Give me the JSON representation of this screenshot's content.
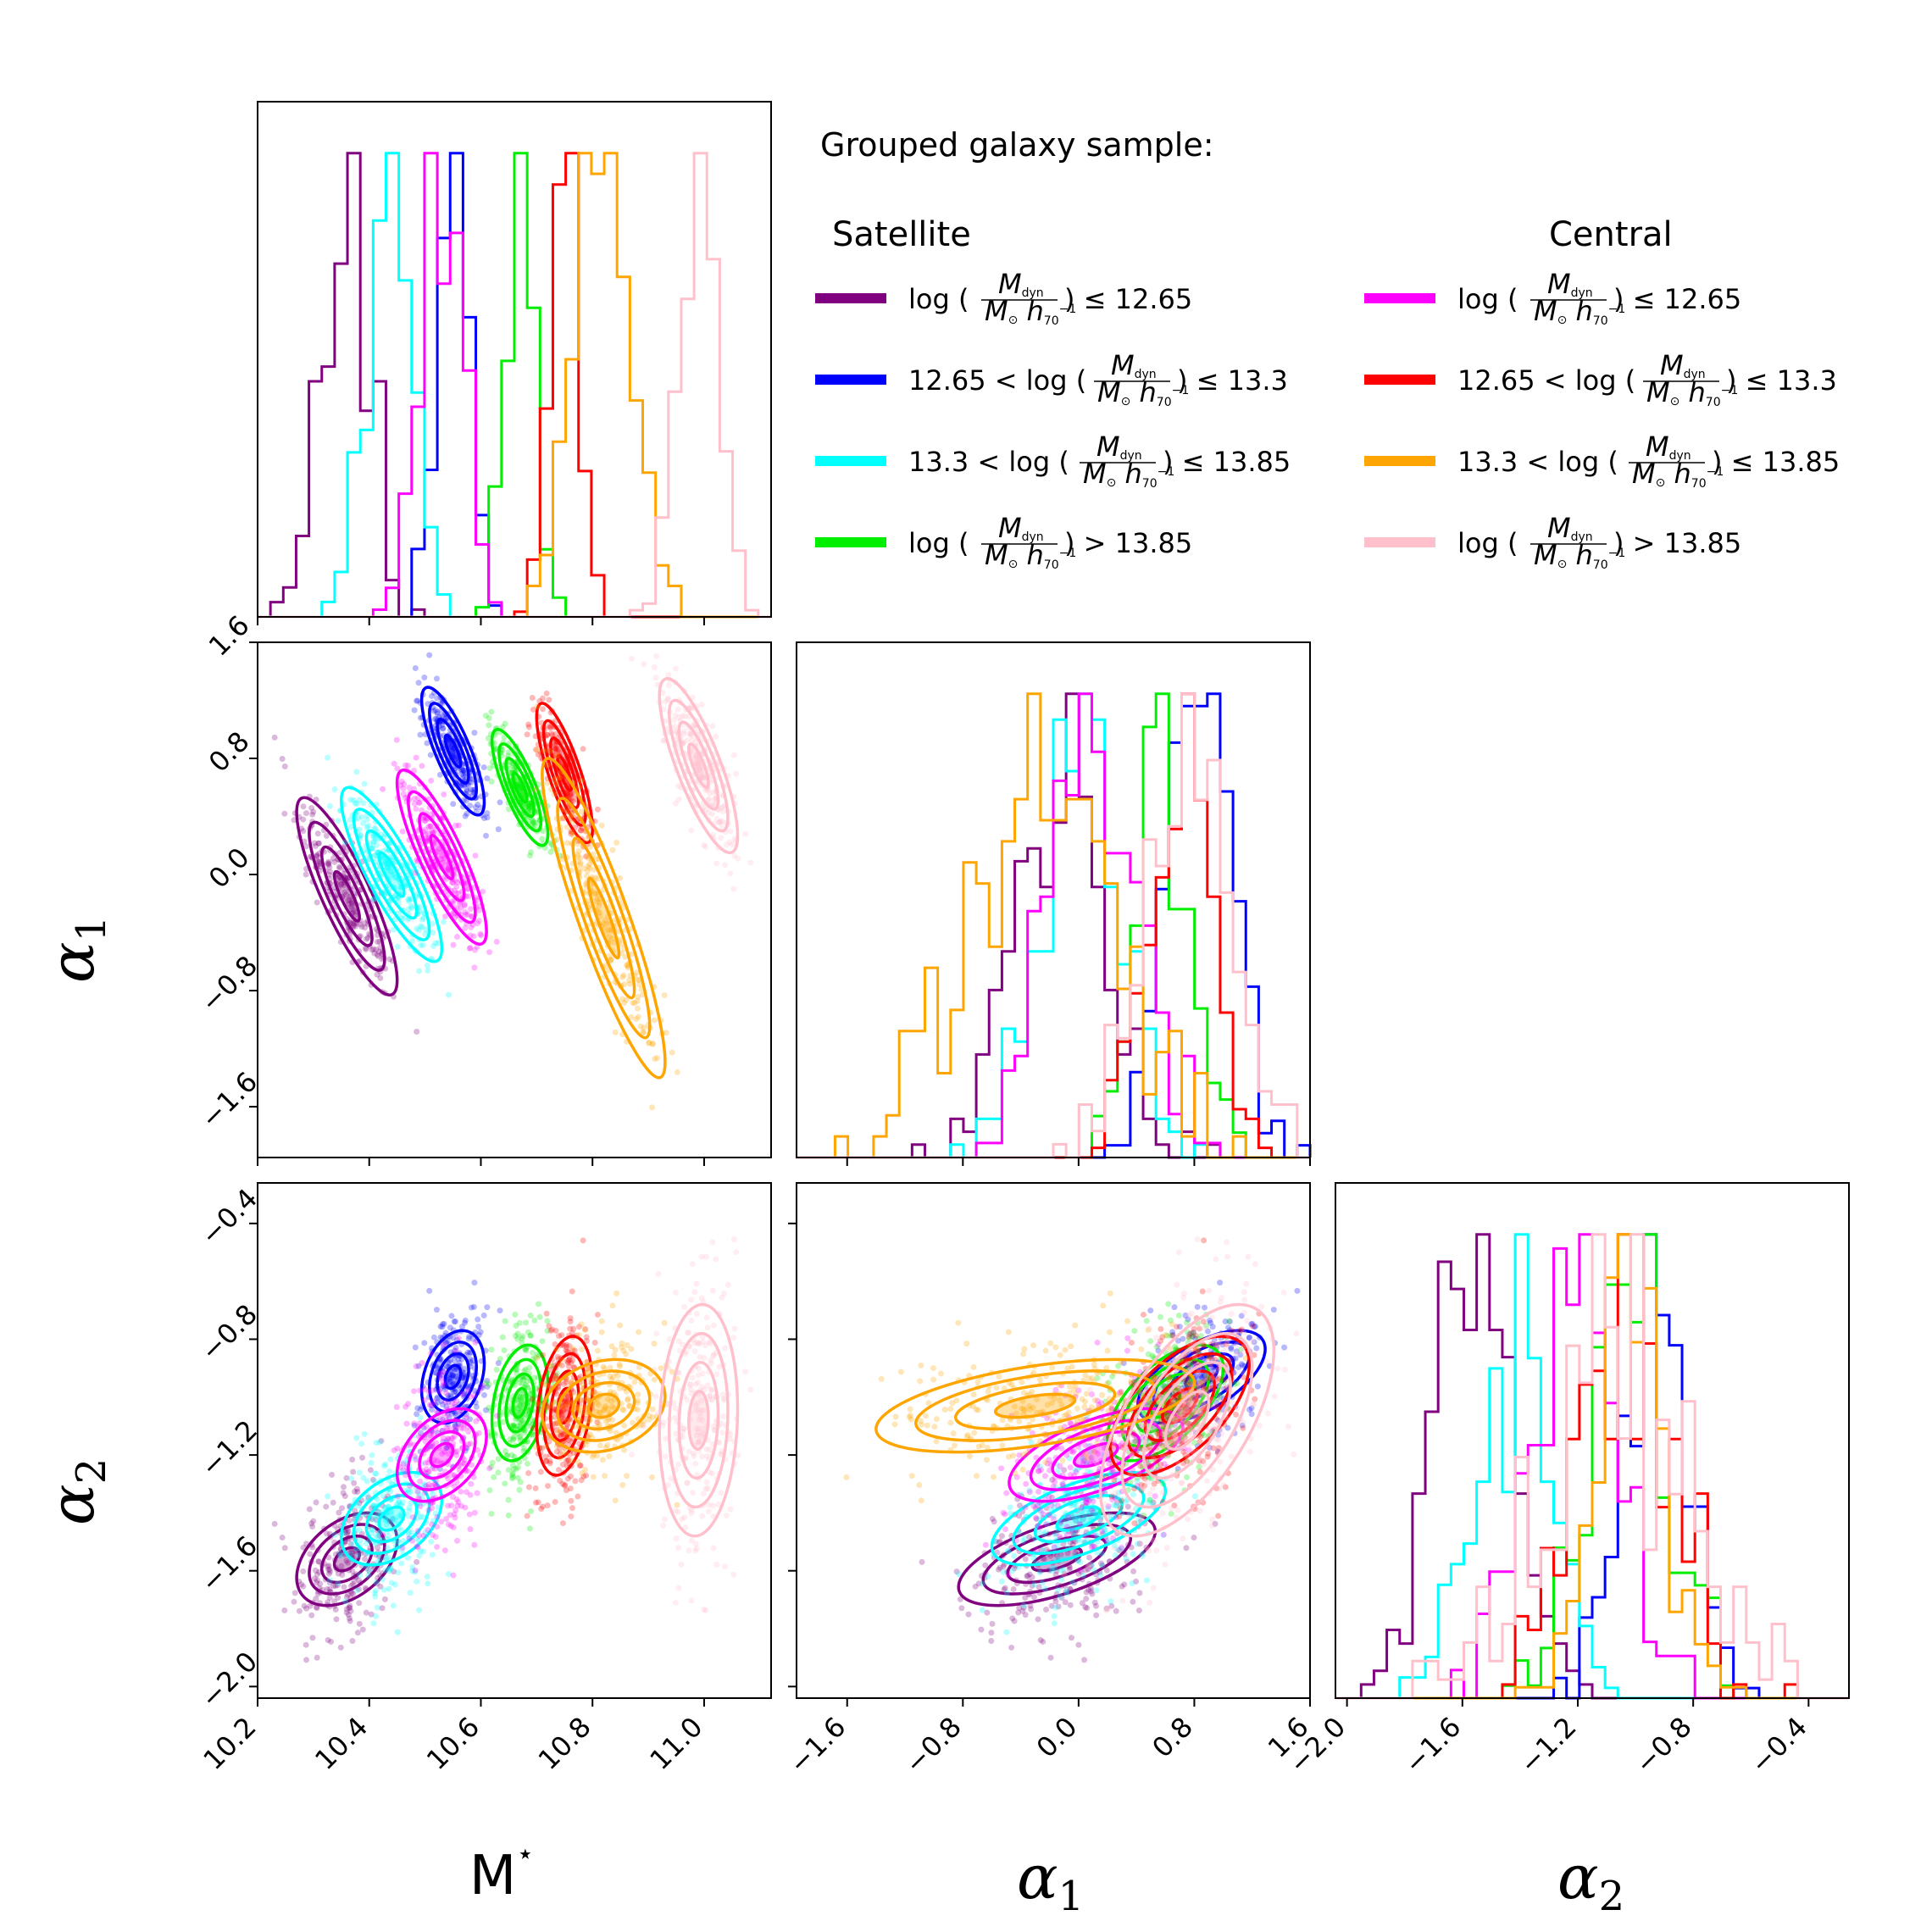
{
  "chart_data": {
    "type": "corner",
    "parameters": [
      "M*",
      "α1",
      "α2"
    ],
    "axis_labels": {
      "mstar": "M",
      "mstar_sup": "⋆",
      "alpha1": "α",
      "alpha1_sub": "1",
      "alpha2": "α",
      "alpha2_sub": "2"
    },
    "ranges": {
      "mstar": [
        10.2,
        11.12
      ],
      "alpha1": [
        -1.95,
        1.6
      ],
      "alpha2": [
        -2.04,
        -0.26
      ]
    },
    "ticks": {
      "mstar": [
        "10.2",
        "10.4",
        "10.6",
        "10.8",
        "11.0"
      ],
      "alpha1": [
        "−1.6",
        "−0.8",
        "0.0",
        "0.8",
        "1.6"
      ],
      "alpha2": [
        "−2.0",
        "−1.6",
        "−1.2",
        "−0.8",
        "−0.4"
      ]
    },
    "tick_values": {
      "mstar": [
        10.2,
        10.4,
        10.6,
        10.8,
        11.0
      ],
      "alpha1": [
        -1.6,
        -0.8,
        0.0,
        0.8,
        1.6
      ],
      "alpha2": [
        -2.0,
        -1.6,
        -1.2,
        -0.8,
        -0.4
      ]
    },
    "legend": {
      "title": "Grouped galaxy sample:",
      "satellite_heading": "Satellite",
      "central_heading": "Central"
    },
    "series": [
      {
        "name": "Satellite log(Mdyn/(M⊙ h70^-1)) ≤ 12.65",
        "group": "Satellite",
        "color": "#800080",
        "prefix": "",
        "suffix": "≤ 12.65",
        "mstar": 10.36,
        "mstar_sd": 0.045,
        "alpha1": -0.15,
        "alpha1_sd": 0.34,
        "alpha2": -1.56,
        "alpha2_sd": 0.08,
        "rho12": -0.85,
        "rho13": 0.4,
        "rho23": 0.6
      },
      {
        "name": "Satellite 12.65 < log(Mdyn/(M⊙ h70^-1)) ≤ 13.3",
        "group": "Satellite",
        "color": "#0000ff",
        "prefix": "12.65 <",
        "suffix": "≤ 13.3",
        "mstar": 10.55,
        "mstar_sd": 0.028,
        "alpha1": 0.85,
        "alpha1_sd": 0.22,
        "alpha2": -0.93,
        "alpha2_sd": 0.08,
        "rho12": -0.8,
        "rho13": 0.3,
        "rho23": 0.6
      },
      {
        "name": "Satellite 13.3 < log(Mdyn/(M⊙ h70^-1)) ≤ 13.85",
        "group": "Satellite",
        "color": "#00ffff",
        "prefix": "13.3 <",
        "suffix": "≤ 13.85",
        "mstar": 10.44,
        "mstar_sd": 0.045,
        "alpha1": 0.0,
        "alpha1_sd": 0.3,
        "alpha2": -1.42,
        "alpha2_sd": 0.08,
        "rho12": -0.85,
        "rho13": 0.4,
        "rho23": 0.6
      },
      {
        "name": "Satellite log(Mdyn/(M⊙ h70^-1)) > 13.85",
        "group": "Satellite",
        "color": "#00ee00",
        "prefix": "",
        "suffix": "> 13.85",
        "mstar": 10.67,
        "mstar_sd": 0.025,
        "alpha1": 0.6,
        "alpha1_sd": 0.2,
        "alpha2": -1.02,
        "alpha2_sd": 0.1,
        "rho12": -0.8,
        "rho13": 0.3,
        "rho23": 0.6
      },
      {
        "name": "Central log(Mdyn/(M⊙ h70^-1)) ≤ 12.65",
        "group": "Central",
        "color": "#ff00ff",
        "prefix": "",
        "suffix": "≤ 12.65",
        "mstar": 10.53,
        "mstar_sd": 0.04,
        "alpha1": 0.12,
        "alpha1_sd": 0.3,
        "alpha2": -1.2,
        "alpha2_sd": 0.08,
        "rho12": -0.85,
        "rho13": 0.4,
        "rho23": 0.6
      },
      {
        "name": "Central 12.65 < log(Mdyn/(M⊙ h70^-1)) ≤ 13.3",
        "group": "Central",
        "color": "#ff0000",
        "prefix": "12.65 <",
        "suffix": "≤ 13.3",
        "mstar": 10.75,
        "mstar_sd": 0.025,
        "alpha1": 0.7,
        "alpha1_sd": 0.24,
        "alpha2": -1.03,
        "alpha2_sd": 0.12,
        "rho12": -0.8,
        "rho13": 0.3,
        "rho23": 0.6
      },
      {
        "name": "Central 13.3 < log(Mdyn/(M⊙ h70^-1)) ≤ 13.85",
        "group": "Central",
        "color": "#ffa500",
        "prefix": "13.3 <",
        "suffix": "≤ 13.85",
        "mstar": 10.82,
        "mstar_sd": 0.055,
        "alpha1": -0.3,
        "alpha1_sd": 0.55,
        "alpha2": -1.03,
        "alpha2_sd": 0.08,
        "rho12": -0.9,
        "rho13": 0.2,
        "rho23": 0.5
      },
      {
        "name": "Central log(Mdyn/(M⊙ h70^-1)) > 13.85",
        "group": "Central",
        "color": "#ffc0cb",
        "prefix": "",
        "suffix": "> 13.85",
        "mstar": 10.99,
        "mstar_sd": 0.035,
        "alpha1": 0.75,
        "alpha1_sd": 0.3,
        "alpha2": -1.08,
        "alpha2_sd": 0.2,
        "rho12": -0.8,
        "rho13": 0.1,
        "rho23": 0.6
      }
    ],
    "legend_math": {
      "log": "log",
      "mdyn": "M",
      "mdyn_sub": "dyn",
      "msun": "M",
      "msun_sub": "⊙",
      "h": "h",
      "h_sub": "70",
      "h_sup": "−1"
    }
  }
}
